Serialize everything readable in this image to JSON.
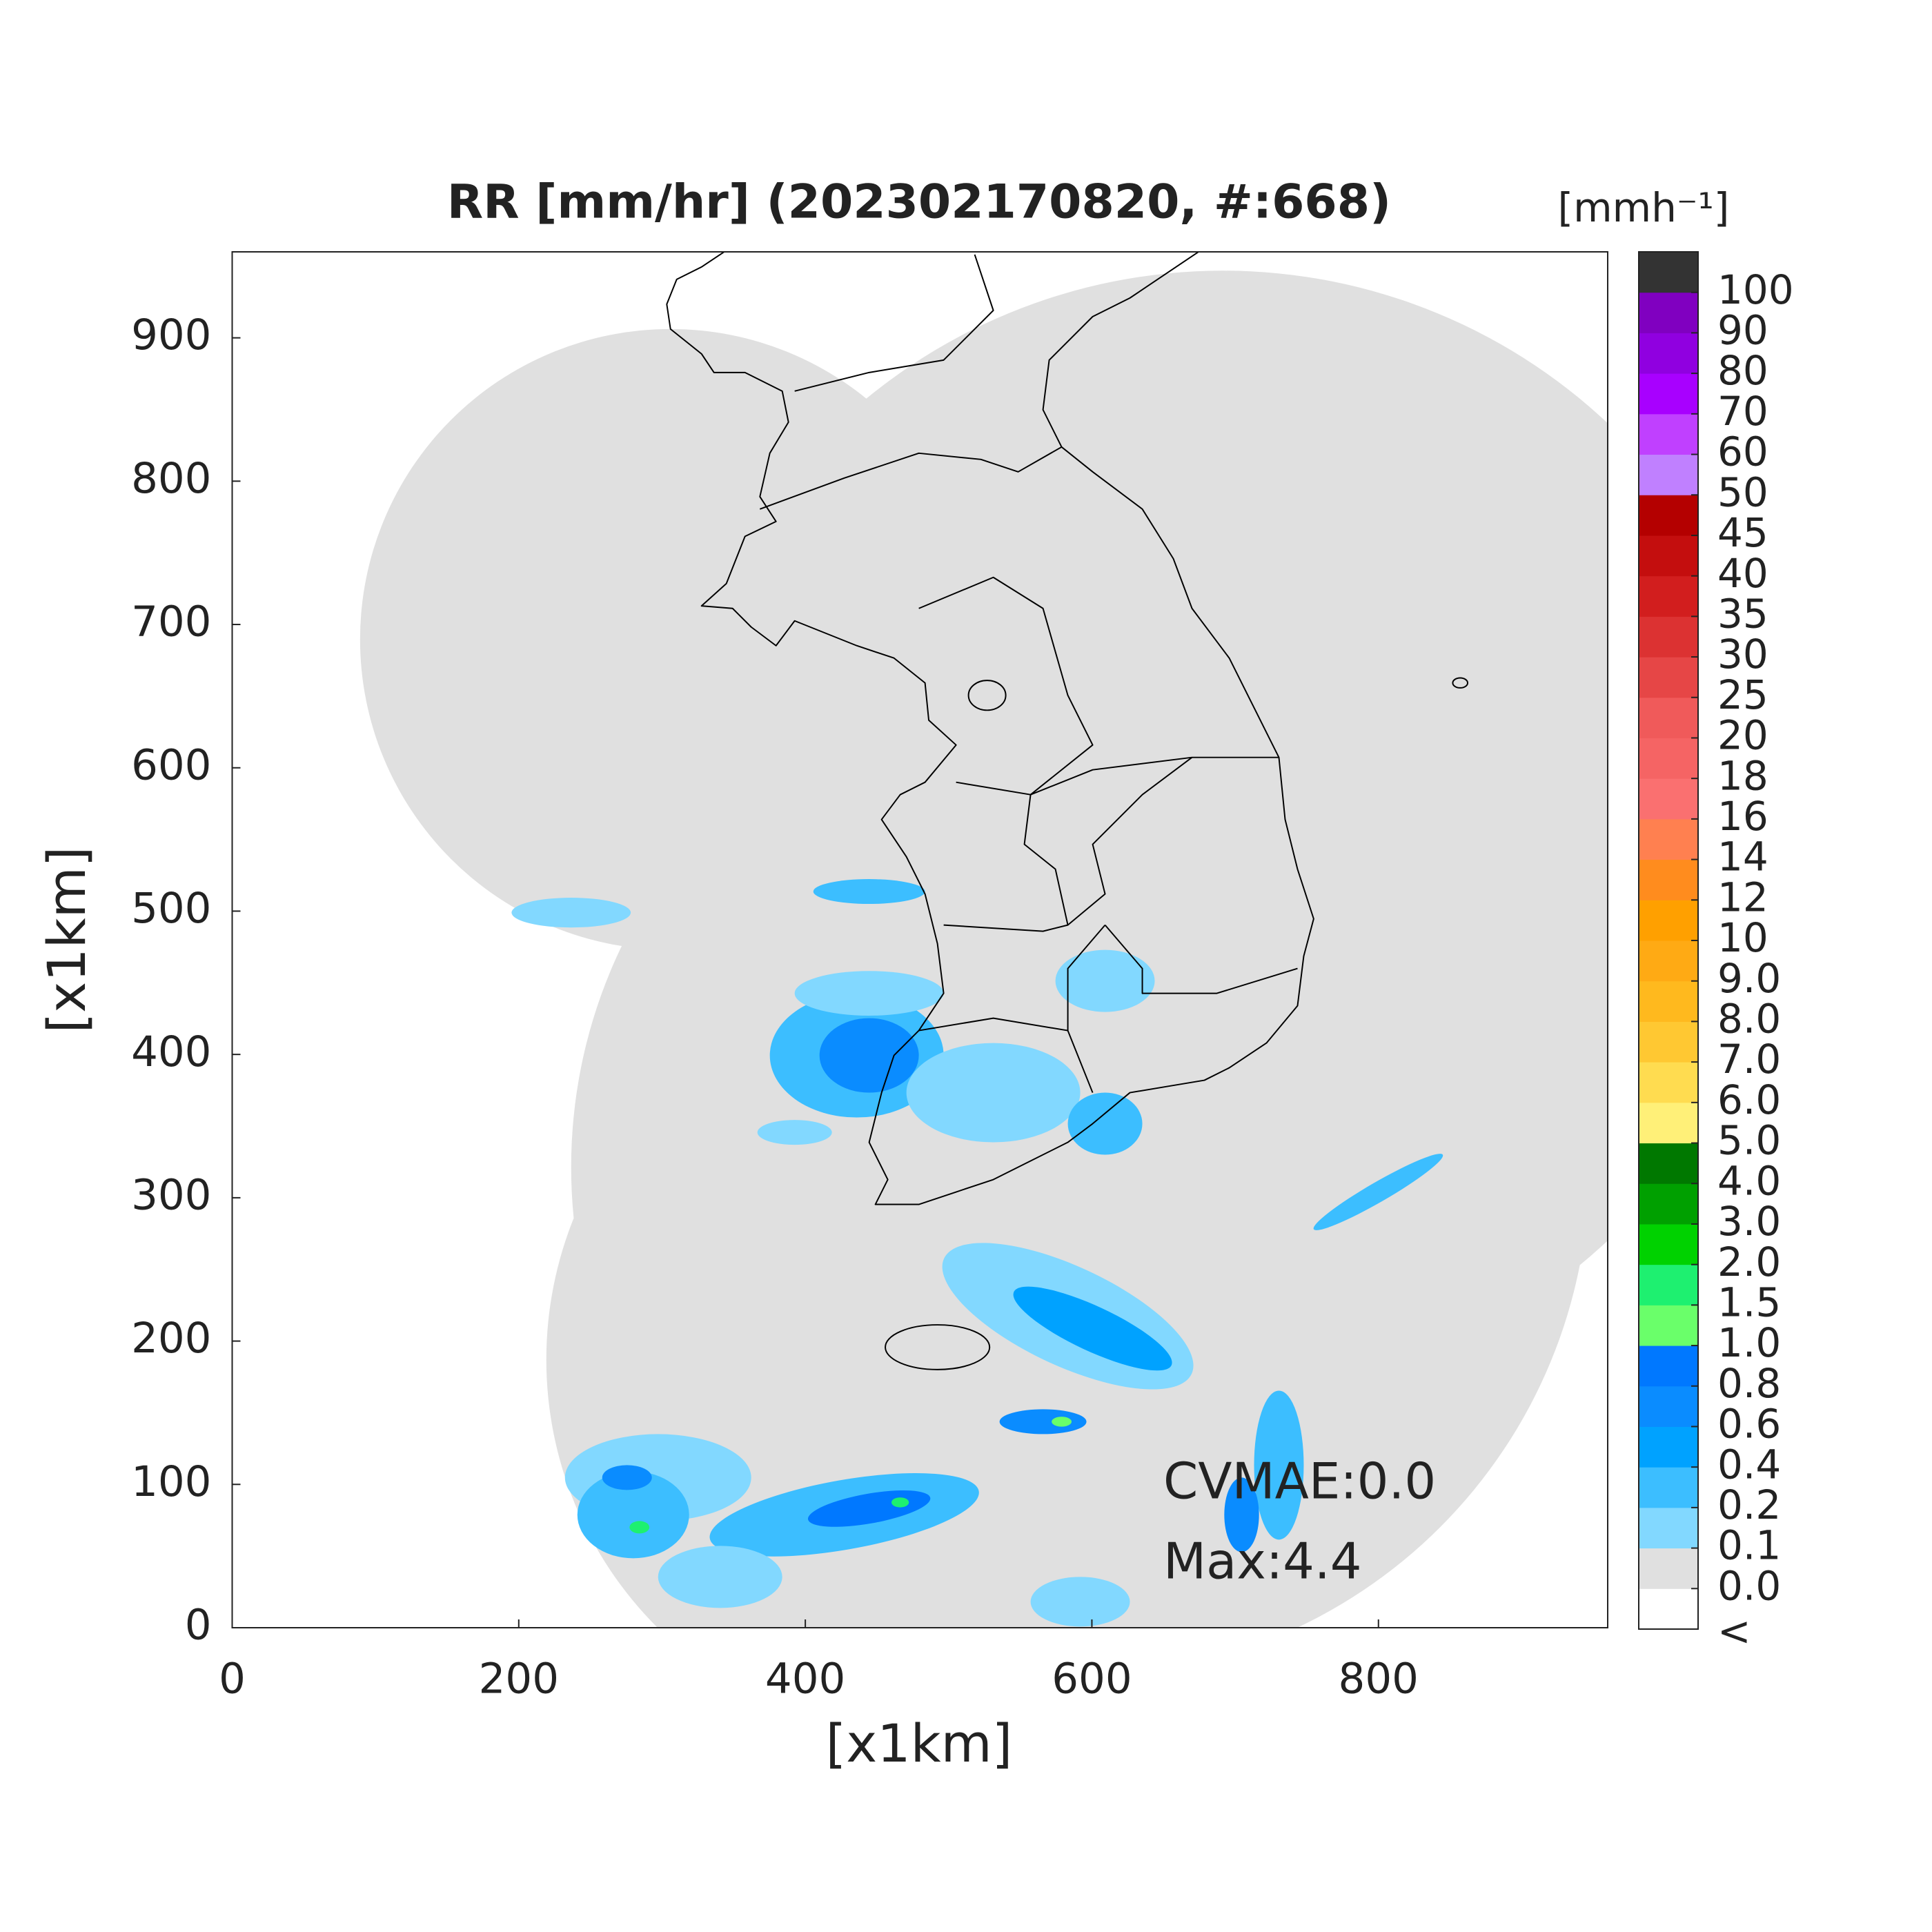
{
  "chart_data": {
    "type": "radar-map",
    "title": "RR [mm/hr] (202302170820, #:668)",
    "xlabel": "[x1km]",
    "ylabel": "[x1km]",
    "xlim": [
      0,
      960
    ],
    "ylim": [
      0,
      960
    ],
    "xticks": [
      0,
      200,
      400,
      600,
      800
    ],
    "yticks": [
      0,
      100,
      200,
      300,
      400,
      500,
      600,
      700,
      800,
      900
    ],
    "annotations": [
      "CVMAE:0.0",
      "Max:4.4"
    ],
    "colorbar": {
      "label": "[mmh⁻¹]",
      "under_label": "<",
      "ticks": [
        {
          "value": 0,
          "label": "0.0"
        },
        0.1,
        0.2,
        0.4,
        0.6,
        0.8,
        {
          "value": 1,
          "label": "1.0"
        },
        1.5,
        {
          "value": 2,
          "label": "2.0"
        },
        {
          "value": 3,
          "label": "3.0"
        },
        {
          "value": 4,
          "label": "4.0"
        },
        {
          "value": 5,
          "label": "5.0"
        },
        {
          "value": 6,
          "label": "6.0"
        },
        {
          "value": 7,
          "label": "7.0"
        },
        {
          "value": 8,
          "label": "8.0"
        },
        {
          "value": 9,
          "label": "9.0"
        },
        10,
        12,
        14,
        16,
        18,
        20,
        25,
        30,
        35,
        40,
        45,
        50,
        60,
        70,
        80,
        90,
        100
      ],
      "colors": [
        "#ffffff",
        "#e0e0e0",
        "#82d8ff",
        "#3cbeff",
        "#00a2ff",
        "#0a8cff",
        "#0078ff",
        "#6aff6a",
        "#1ef070",
        "#00d200",
        "#00a000",
        "#007800",
        "#fff078",
        "#ffdc50",
        "#ffc832",
        "#ffb91e",
        "#ffaa14",
        "#ffa000",
        "#ff8c1e",
        "#ff8050",
        "#fa7070",
        "#f56464",
        "#f05a5a",
        "#e64646",
        "#dc3232",
        "#d21e1e",
        "#c40e0e",
        "#b40000",
        "#c080ff",
        "#c040ff",
        "#a800ff",
        "#9000e0",
        "#8000c0",
        "#333333"
      ]
    }
  }
}
